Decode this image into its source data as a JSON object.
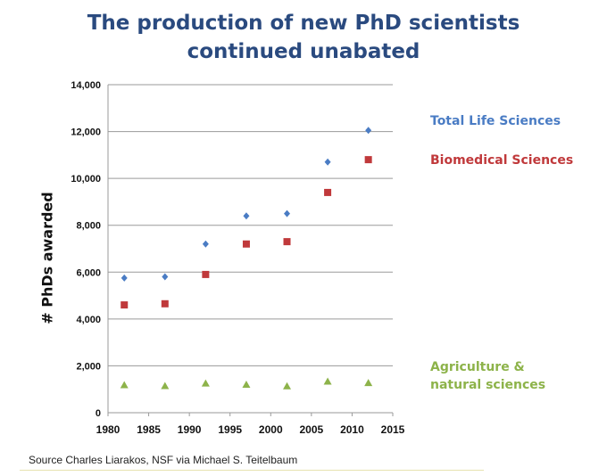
{
  "chart_data": {
    "type": "scatter",
    "title": "The production of new PhD scientists continued unabated",
    "title_lines": [
      "The production of new PhD scientists",
      "continued unabated"
    ],
    "xlabel": "",
    "ylabel": "# PhDs awarded",
    "xlim": [
      1980,
      2015
    ],
    "ylim": [
      0,
      14000
    ],
    "xticks": [
      1980,
      1985,
      1990,
      1995,
      2000,
      2005,
      2010,
      2015
    ],
    "yticks": [
      0,
      2000,
      4000,
      6000,
      8000,
      10000,
      12000,
      14000
    ],
    "ytick_labels": [
      "0",
      "2,000",
      "4,000",
      "6,000",
      "8,000",
      "10,000",
      "12,000",
      "14,000"
    ],
    "grid": "horizontal",
    "legend_placement": "right",
    "x": [
      1982,
      1987,
      1992,
      1997,
      2002,
      2007,
      2012
    ],
    "series": [
      {
        "name": "Total Life Sciences",
        "label_lines": [
          "Total Life Sciences"
        ],
        "marker": "diamond",
        "color": "#4a7cc4",
        "values": [
          5750,
          5800,
          7200,
          8400,
          8500,
          10700,
          12050
        ]
      },
      {
        "name": "Biomedical Sciences",
        "label_lines": [
          "Biomedical Sciences"
        ],
        "marker": "square",
        "color": "#c0393b",
        "values": [
          4600,
          4650,
          5900,
          7200,
          7300,
          9400,
          10800
        ]
      },
      {
        "name": "Agriculture & natural sciences",
        "label_lines": [
          "Agriculture &",
          "natural sciences"
        ],
        "marker": "triangle",
        "color": "#8db34a",
        "values": [
          1180,
          1140,
          1250,
          1200,
          1130,
          1330,
          1270
        ]
      }
    ]
  },
  "source": "Source Charles Liarakos, NSF via Michael S. Teitelbaum"
}
